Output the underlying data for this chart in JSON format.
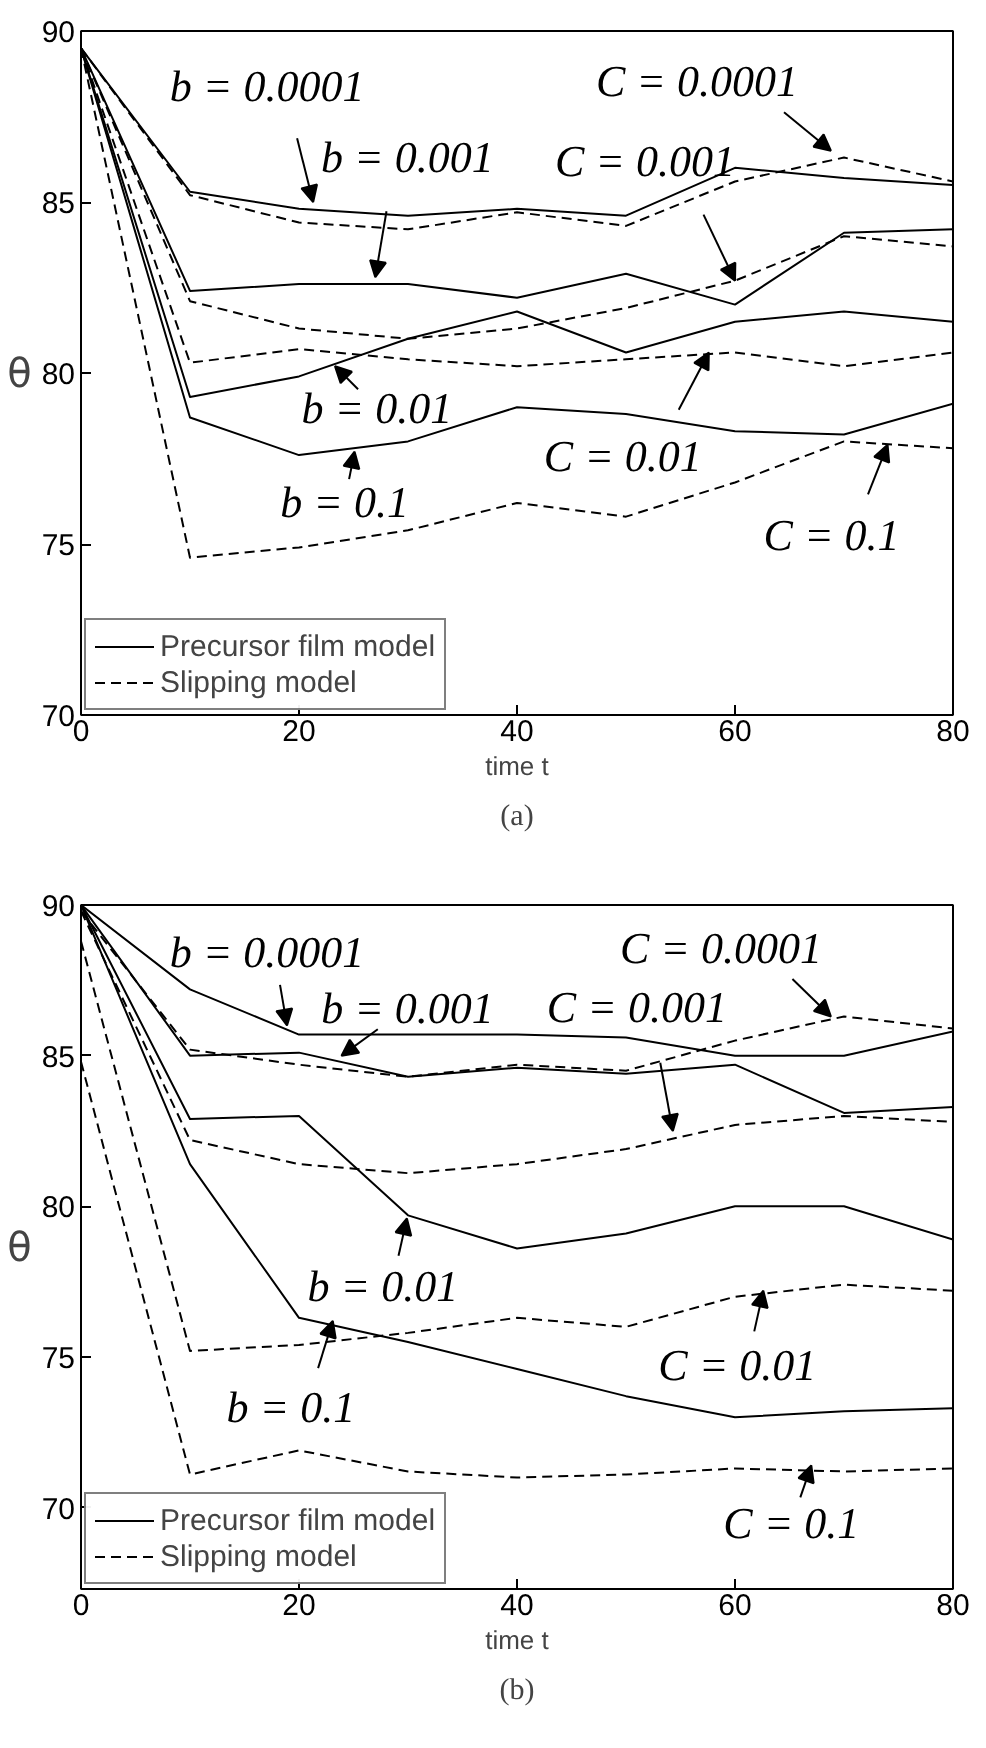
{
  "chart_data": [
    {
      "type": "line",
      "xlabel": "time t",
      "ylabel": "θ",
      "x": [
        0,
        10,
        20,
        30,
        40,
        50,
        60,
        70,
        80
      ],
      "xlim": [
        0,
        80
      ],
      "ylim": [
        70,
        90
      ],
      "xticks": [
        0,
        20,
        40,
        60,
        80
      ],
      "yticks": [
        70,
        75,
        80,
        85,
        90
      ],
      "grid": false,
      "legend": "bottom left",
      "marker": "none",
      "series": [
        {
          "name": "Precursor film model",
          "color": "#000000",
          "line_style": "solid",
          "values": [
            89.5,
            85.3,
            84.8,
            84.6,
            84.8,
            84.6,
            86.0,
            85.7,
            85.5
          ]
        },
        {
          "name": "Slipping model",
          "color": "#000000",
          "line_style": "dashed",
          "values": [
            89.5,
            85.2,
            84.4,
            84.2,
            84.7,
            84.3,
            85.6,
            86.3,
            85.6
          ]
        },
        {
          "color": "#000000",
          "line_style": "solid",
          "values": [
            89.5,
            82.4,
            82.6,
            82.6,
            82.2,
            82.9,
            82.0,
            84.1,
            84.2
          ]
        },
        {
          "color": "#000000",
          "line_style": "dashed",
          "values": [
            89.5,
            82.1,
            81.3,
            81.0,
            81.3,
            81.9,
            82.7,
            84.0,
            83.7
          ]
        },
        {
          "color": "#000000",
          "line_style": "solid",
          "values": [
            89.5,
            79.3,
            79.9,
            81.0,
            81.8,
            80.6,
            81.5,
            81.8,
            81.5
          ]
        },
        {
          "color": "#000000",
          "line_style": "dashed",
          "values": [
            89.5,
            80.3,
            80.7,
            80.4,
            80.2,
            80.4,
            80.6,
            80.2,
            80.6
          ]
        },
        {
          "color": "#000000",
          "line_style": "solid",
          "values": [
            89.5,
            78.7,
            77.6,
            78.0,
            79.0,
            78.8,
            78.3,
            78.2,
            79.1
          ]
        },
        {
          "color": "#000000",
          "line_style": "dashed",
          "values": [
            89.5,
            74.6,
            74.9,
            75.4,
            76.2,
            75.8,
            76.8,
            78.0,
            77.8
          ]
        }
      ],
      "annotations": [
        {
          "text": "b = 0.0001",
          "x": 21.3,
          "y": 85.0
        },
        {
          "text": "b = 0.001",
          "x": 27,
          "y": 82.8
        },
        {
          "text": "C = 0.0001",
          "x": 68.8,
          "y": 86.5
        },
        {
          "text": "C = 0.001",
          "x": 60,
          "y": 82.7
        },
        {
          "text": "b = 0.01",
          "x": 23.3,
          "y": 80.2
        },
        {
          "text": "b = 0.1",
          "x": 25.1,
          "y": 77.7
        },
        {
          "text": "C = 0.01",
          "x": 57.6,
          "y": 80.6
        },
        {
          "text": "C = 0.1",
          "x": 74,
          "y": 77.9
        },
        "(a)"
      ]
    },
    {
      "type": "line",
      "xlabel": "time t",
      "ylabel": "θ",
      "x": [
        0,
        10,
        20,
        30,
        40,
        50,
        60,
        70,
        80
      ],
      "xlim": [
        0,
        80
      ],
      "ylim": [
        67.3,
        90
      ],
      "xticks": [
        0,
        20,
        40,
        60,
        80
      ],
      "yticks": [
        70,
        75,
        80,
        85,
        90
      ],
      "grid": false,
      "legend": "bottom left",
      "marker": "none",
      "series": [
        {
          "name": "Precursor film model",
          "color": "#000000",
          "line_style": "solid",
          "values": [
            90,
            87.2,
            85.7,
            85.7,
            85.7,
            85.6,
            85.0,
            85.0,
            85.8
          ]
        },
        {
          "color": "#000000",
          "line_style": "solid",
          "values": [
            90,
            85.0,
            85.1,
            84.3,
            84.6,
            84.4,
            84.7,
            83.1,
            83.3
          ]
        },
        {
          "name": "Slipping model",
          "color": "#000000",
          "line_style": "dashed",
          "values": [
            89.8,
            85.2,
            84.7,
            84.3,
            84.7,
            84.5,
            85.5,
            86.3,
            85.9
          ]
        },
        {
          "color": "#000000",
          "line_style": "dashed",
          "values": [
            89.8,
            82.2,
            81.4,
            81.1,
            81.4,
            81.9,
            82.7,
            83.0,
            82.8
          ]
        },
        {
          "color": "#000000",
          "line_style": "solid",
          "values": [
            90,
            82.9,
            83.0,
            79.7,
            78.6,
            79.1,
            80.0,
            80.0,
            78.9
          ]
        },
        {
          "color": "#000000",
          "line_style": "solid",
          "values": [
            90,
            81.4,
            76.3,
            75.5,
            74.6,
            73.7,
            73.0,
            73.2,
            73.3
          ]
        },
        {
          "color": "#000000",
          "line_style": "dashed",
          "values": [
            88.8,
            75.2,
            75.4,
            75.8,
            76.3,
            76.0,
            77.0,
            77.4,
            77.2
          ]
        },
        {
          "color": "#000000",
          "line_style": "dashed",
          "values": [
            84.8,
            71.1,
            71.9,
            71.2,
            71.0,
            71.1,
            71.3,
            71.2,
            71.3
          ]
        }
      ],
      "annotations": [
        {
          "text": "b = 0.0001",
          "x": 18.9,
          "y": 86.0
        },
        {
          "text": "b = 0.001",
          "x": 23.9,
          "y": 85.0
        },
        {
          "text": "C = 0.0001",
          "x": 68.8,
          "y": 86.3
        },
        {
          "text": "C = 0.001",
          "x": 54.3,
          "y": 82.5
        },
        {
          "text": "b = 0.01",
          "x": 29.9,
          "y": 79.6
        },
        {
          "text": "b = 0.1",
          "x": 23.1,
          "y": 76.2
        },
        {
          "text": "C = 0.01",
          "x": 62.6,
          "y": 77.2
        },
        {
          "text": "C = 0.1",
          "x": 67,
          "y": 71.4
        },
        "(b)"
      ]
    }
  ]
}
